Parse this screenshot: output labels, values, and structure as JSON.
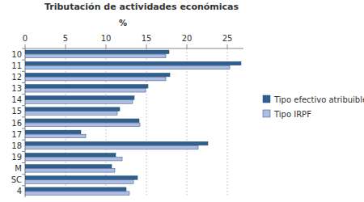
{
  "chart_data": {
    "type": "bar",
    "orientation": "horizontal",
    "title": "Tributación de actividades económicas",
    "x_label": "%",
    "categories": [
      "10",
      "11",
      "12",
      "13",
      "14",
      "15",
      "16",
      "17",
      "18",
      "19",
      "M",
      "SC",
      "4"
    ],
    "series": [
      {
        "name": "Tipo efectivo atribuible",
        "color": "#2f5f8f",
        "values": [
          17.8,
          26.7,
          17.9,
          15.2,
          13.5,
          11.7,
          14.1,
          6.9,
          22.6,
          11.2,
          10.7,
          13.9,
          12.5
        ]
      },
      {
        "name": "Tipo IRPF",
        "color": "#aebde6",
        "values": [
          17.4,
          25.3,
          17.4,
          14.9,
          13.3,
          11.4,
          14.2,
          7.5,
          21.4,
          12.0,
          11.1,
          13.4,
          12.9
        ]
      }
    ],
    "xlim": [
      0,
      27
    ],
    "xticks": [
      0,
      5,
      10,
      15,
      20,
      25
    ],
    "grid": true,
    "legend": "right"
  }
}
